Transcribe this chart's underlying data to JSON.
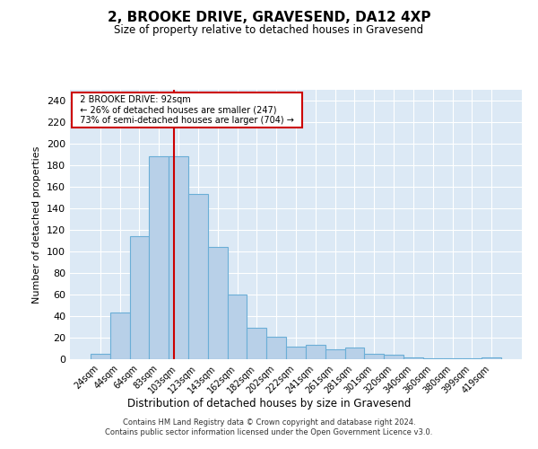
{
  "title": "2, BROOKE DRIVE, GRAVESEND, DA12 4XP",
  "subtitle": "Size of property relative to detached houses in Gravesend",
  "xlabel": "Distribution of detached houses by size in Gravesend",
  "ylabel": "Number of detached properties",
  "bar_labels": [
    "24sqm",
    "44sqm",
    "64sqm",
    "83sqm",
    "103sqm",
    "123sqm",
    "143sqm",
    "162sqm",
    "182sqm",
    "202sqm",
    "222sqm",
    "241sqm",
    "261sqm",
    "281sqm",
    "301sqm",
    "320sqm",
    "340sqm",
    "360sqm",
    "380sqm",
    "399sqm",
    "419sqm"
  ],
  "bar_heights": [
    5,
    43,
    114,
    188,
    188,
    153,
    104,
    60,
    29,
    21,
    12,
    13,
    9,
    11,
    5,
    4,
    2,
    1,
    1,
    1,
    2
  ],
  "bar_color": "#b8d0e8",
  "bar_edgecolor": "#6baed6",
  "vline_x": 3.78,
  "vline_color": "#cc0000",
  "annotation_title": "2 BROOKE DRIVE: 92sqm",
  "annotation_line2": "← 26% of detached houses are smaller (247)",
  "annotation_line3": "73% of semi-detached houses are larger (704) →",
  "annotation_box_facecolor": "#ffffff",
  "annotation_box_edgecolor": "#cc0000",
  "ylim": [
    0,
    250
  ],
  "yticks": [
    0,
    20,
    40,
    60,
    80,
    100,
    120,
    140,
    160,
    180,
    200,
    220,
    240
  ],
  "background_color": "#dce9f5",
  "footer_line1": "Contains HM Land Registry data © Crown copyright and database right 2024.",
  "footer_line2": "Contains public sector information licensed under the Open Government Licence v3.0."
}
